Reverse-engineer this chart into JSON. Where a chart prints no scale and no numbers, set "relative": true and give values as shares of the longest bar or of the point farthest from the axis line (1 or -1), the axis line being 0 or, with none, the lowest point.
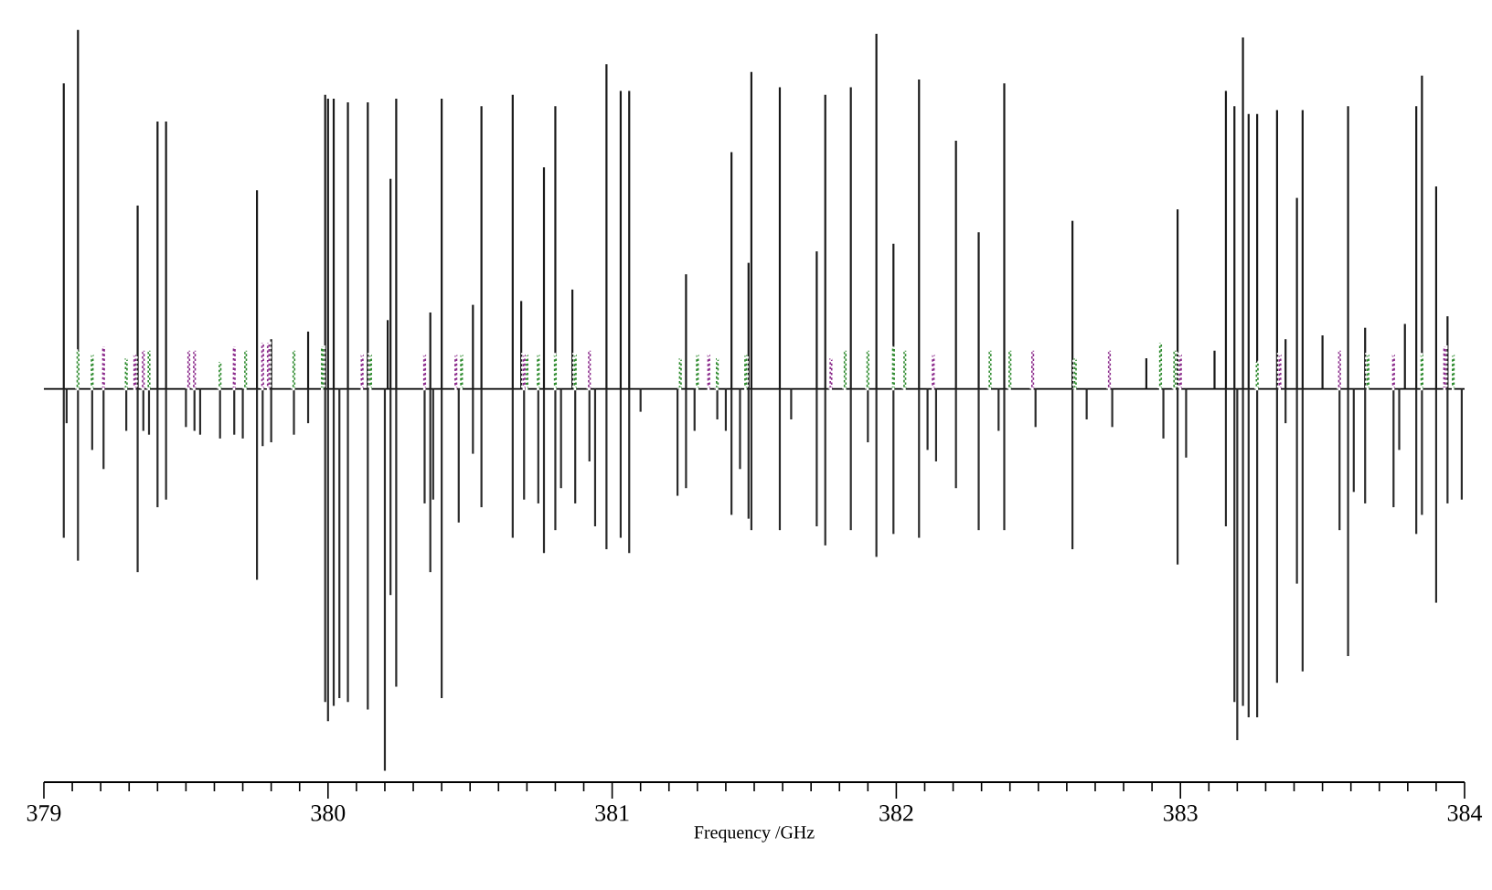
{
  "chart_data": {
    "type": "bar",
    "relative": true,
    "xlabel": "Frequency /GHz",
    "xlim": [
      379,
      384
    ],
    "xticks": [
      {
        "value": 379,
        "label": "379"
      },
      {
        "value": 379.1,
        "label": null
      },
      {
        "value": 379.2,
        "label": null
      },
      {
        "value": 379.3,
        "label": null
      },
      {
        "value": 379.4,
        "label": null
      },
      {
        "value": 379.5,
        "label": null
      },
      {
        "value": 379.6,
        "label": null
      },
      {
        "value": 379.7,
        "label": null
      },
      {
        "value": 379.8,
        "label": null
      },
      {
        "value": 379.9,
        "label": null
      },
      {
        "value": 380,
        "label": "380"
      },
      {
        "value": 380.1,
        "label": null
      },
      {
        "value": 380.2,
        "label": null
      },
      {
        "value": 380.3,
        "label": null
      },
      {
        "value": 380.4,
        "label": null
      },
      {
        "value": 380.5,
        "label": null
      },
      {
        "value": 380.6,
        "label": null
      },
      {
        "value": 380.7,
        "label": null
      },
      {
        "value": 380.8,
        "label": null
      },
      {
        "value": 380.9,
        "label": null
      },
      {
        "value": 381,
        "label": "381"
      },
      {
        "value": 381.1,
        "label": null
      },
      {
        "value": 381.2,
        "label": null
      },
      {
        "value": 381.3,
        "label": null
      },
      {
        "value": 381.4,
        "label": null
      },
      {
        "value": 381.5,
        "label": null
      },
      {
        "value": 381.6,
        "label": null
      },
      {
        "value": 381.7,
        "label": null
      },
      {
        "value": 381.8,
        "label": null
      },
      {
        "value": 381.9,
        "label": null
      },
      {
        "value": 382,
        "label": "382"
      },
      {
        "value": 382.1,
        "label": null
      },
      {
        "value": 382.2,
        "label": null
      },
      {
        "value": 382.3,
        "label": null
      },
      {
        "value": 382.4,
        "label": null
      },
      {
        "value": 382.5,
        "label": null
      },
      {
        "value": 382.6,
        "label": null
      },
      {
        "value": 382.7,
        "label": null
      },
      {
        "value": 382.8,
        "label": null
      },
      {
        "value": 382.9,
        "label": null
      },
      {
        "value": 383,
        "label": "383"
      },
      {
        "value": 383.1,
        "label": null
      },
      {
        "value": 383.2,
        "label": null
      },
      {
        "value": 383.3,
        "label": null
      },
      {
        "value": 383.4,
        "label": null
      },
      {
        "value": 383.5,
        "label": null
      },
      {
        "value": 383.6,
        "label": null
      },
      {
        "value": 383.7,
        "label": null
      },
      {
        "value": 383.8,
        "label": null
      },
      {
        "value": 383.9,
        "label": null
      },
      {
        "value": 384,
        "label": "384"
      }
    ],
    "tick_labels": "x",
    "grid": false,
    "series": [
      {
        "color": "#1a1a1a",
        "line_style": "solid",
        "x": [
          379.07,
          379.12,
          379.33,
          379.4,
          379.43,
          379.75,
          379.8,
          379.93,
          379.99,
          380.0,
          380.02,
          380.07,
          380.14,
          380.21,
          380.22,
          380.24,
          380.36,
          380.4,
          380.51,
          380.54,
          380.65,
          380.68,
          380.76,
          380.8,
          380.86,
          380.98,
          381.03,
          381.06,
          381.26,
          381.42,
          381.48,
          381.49,
          381.59,
          381.72,
          381.75,
          381.84,
          381.93,
          381.99,
          382.08,
          382.21,
          382.29,
          382.38,
          382.62,
          382.88,
          382.99,
          383.12,
          383.16,
          383.19,
          383.22,
          383.24,
          383.27,
          383.34,
          383.37,
          383.41,
          383.43,
          383.5,
          383.59,
          383.65,
          383.79,
          383.83,
          383.85,
          383.9,
          383.94
        ],
        "values": [
          0.8,
          0.94,
          0.48,
          0.7,
          0.7,
          0.52,
          0.13,
          0.15,
          0.77,
          0.76,
          0.76,
          0.75,
          0.75,
          0.18,
          0.55,
          0.76,
          0.2,
          0.76,
          0.22,
          0.74,
          0.77,
          0.23,
          0.58,
          0.74,
          0.26,
          0.85,
          0.78,
          0.78,
          0.3,
          0.62,
          0.33,
          0.83,
          0.79,
          0.36,
          0.77,
          0.79,
          0.93,
          0.38,
          0.81,
          0.65,
          0.41,
          0.8,
          0.44,
          0.08,
          0.47,
          0.1,
          0.78,
          0.74,
          0.92,
          0.72,
          0.72,
          0.73,
          0.13,
          0.5,
          0.73,
          0.14,
          0.74,
          0.16,
          0.17,
          0.74,
          0.82,
          0.53,
          0.19
        ]
      },
      {
        "color": "#2b2b2b",
        "line_style": "solid",
        "x": [
          379.07,
          379.08,
          379.12,
          379.17,
          379.21,
          379.29,
          379.33,
          379.35,
          379.37,
          379.4,
          379.43,
          379.5,
          379.53,
          379.55,
          379.62,
          379.67,
          379.7,
          379.75,
          379.77,
          379.8,
          379.88,
          379.93,
          379.99,
          380.0,
          380.02,
          380.04,
          380.07,
          380.14,
          380.2,
          380.22,
          380.24,
          380.34,
          380.36,
          380.37,
          380.4,
          380.46,
          380.51,
          380.54,
          380.65,
          380.69,
          380.74,
          380.76,
          380.8,
          380.82,
          380.87,
          380.92,
          380.94,
          380.98,
          381.03,
          381.06,
          381.1,
          381.23,
          381.26,
          381.29,
          381.37,
          381.4,
          381.42,
          381.45,
          381.48,
          381.49,
          381.59,
          381.63,
          381.72,
          381.75,
          381.84,
          381.9,
          381.93,
          381.99,
          382.08,
          382.11,
          382.14,
          382.21,
          382.29,
          382.36,
          382.38,
          382.49,
          382.62,
          382.67,
          382.76,
          382.94,
          382.99,
          383.02,
          383.16,
          383.19,
          383.2,
          383.22,
          383.24,
          383.27,
          383.34,
          383.37,
          383.41,
          383.43,
          383.56,
          383.59,
          383.61,
          383.65,
          383.75,
          383.77,
          383.83,
          383.85,
          383.9,
          383.94,
          383.99
        ],
        "values": [
          -0.39,
          -0.09,
          -0.45,
          -0.16,
          -0.21,
          -0.11,
          -0.48,
          -0.11,
          -0.12,
          -0.31,
          -0.29,
          -0.1,
          -0.11,
          -0.12,
          -0.13,
          -0.12,
          -0.13,
          -0.5,
          -0.15,
          -0.14,
          -0.12,
          -0.09,
          -0.82,
          -0.87,
          -0.83,
          -0.81,
          -0.82,
          -0.84,
          -1,
          -0.54,
          -0.78,
          -0.3,
          -0.48,
          -0.29,
          -0.81,
          -0.35,
          -0.17,
          -0.31,
          -0.39,
          -0.29,
          -0.3,
          -0.43,
          -0.37,
          -0.26,
          -0.3,
          -0.19,
          -0.36,
          -0.42,
          -0.39,
          -0.43,
          -0.06,
          -0.28,
          -0.26,
          -0.11,
          -0.08,
          -0.11,
          -0.33,
          -0.21,
          -0.34,
          -0.37,
          -0.37,
          -0.08,
          -0.36,
          -0.41,
          -0.37,
          -0.14,
          -0.44,
          -0.38,
          -0.39,
          -0.16,
          -0.19,
          -0.26,
          -0.37,
          -0.11,
          -0.37,
          -0.1,
          -0.42,
          -0.08,
          -0.1,
          -0.13,
          -0.46,
          -0.18,
          -0.36,
          -0.82,
          -0.92,
          -0.83,
          -0.86,
          -0.86,
          -0.77,
          -0.09,
          -0.51,
          -0.74,
          -0.37,
          -0.7,
          -0.27,
          -0.3,
          -0.31,
          -0.16,
          -0.38,
          -0.33,
          -0.56,
          -0.3,
          -0.29
        ]
      },
      {
        "color": "#2e8b2e",
        "line_style": "dotted",
        "x": [
          379.12,
          379.17,
          379.29,
          379.37,
          379.62,
          379.71,
          379.88,
          379.98,
          380.15,
          380.47,
          380.7,
          380.74,
          380.8,
          380.87,
          381.24,
          381.3,
          381.37,
          381.47,
          381.82,
          381.9,
          381.99,
          382.03,
          382.33,
          382.4,
          382.63,
          382.93,
          382.98,
          383.27,
          383.66,
          383.85,
          383.96
        ],
        "values": [
          0.1,
          0.09,
          0.08,
          0.1,
          0.07,
          0.1,
          0.1,
          0.11,
          0.09,
          0.09,
          0.09,
          0.09,
          0.09,
          0.09,
          0.08,
          0.09,
          0.08,
          0.09,
          0.1,
          0.1,
          0.11,
          0.1,
          0.1,
          0.1,
          0.08,
          0.12,
          0.1,
          0.07,
          0.09,
          0.09,
          0.09
        ]
      },
      {
        "color": "#8b2a8b",
        "line_style": "dotted",
        "x": [
          379.21,
          379.32,
          379.35,
          379.51,
          379.53,
          379.67,
          379.77,
          379.79,
          380.12,
          380.34,
          380.45,
          380.69,
          380.92,
          381.34,
          381.77,
          382.13,
          382.48,
          382.75,
          383.0,
          383.35,
          383.56,
          383.75,
          383.93
        ],
        "values": [
          0.11,
          0.09,
          0.1,
          0.1,
          0.1,
          0.11,
          0.12,
          0.12,
          0.09,
          0.09,
          0.09,
          0.09,
          0.1,
          0.09,
          0.08,
          0.09,
          0.1,
          0.1,
          0.09,
          0.09,
          0.1,
          0.09,
          0.11
        ]
      }
    ]
  }
}
